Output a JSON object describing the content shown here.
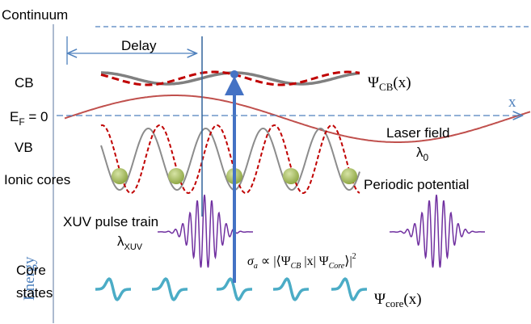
{
  "labels": {
    "continuum": "Continuum",
    "delay": "Delay",
    "cb": "CB",
    "psi_cb": [
      "Ψ",
      "CB",
      "(x)"
    ],
    "x_axis": "x",
    "fermi": [
      "E",
      "F",
      " = 0"
    ],
    "vb": "VB",
    "laser_field": "Laser field",
    "lambda0": [
      "λ",
      "0"
    ],
    "ionic_cores": "Ionic cores",
    "periodic_potential": "Periodic potential",
    "xuv_pulse_train": "XUV pulse train",
    "lambda_xuv": [
      "λ",
      "XUV"
    ],
    "cross_section": [
      "σ",
      "a",
      " ∝ |⟨Ψ",
      "CB",
      " |x| Ψ",
      "Core",
      "⟩|",
      "2"
    ],
    "energy": "Energy",
    "core_states": [
      "Core",
      "states"
    ],
    "psi_core": [
      "Ψ",
      "core",
      "(x)"
    ]
  }
}
